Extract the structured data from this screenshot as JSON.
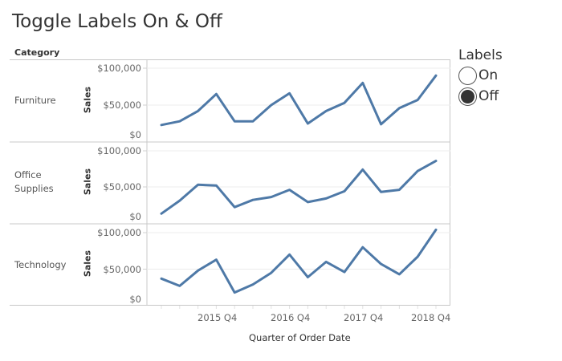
{
  "title": "Toggle Labels On & Off",
  "chart_data": {
    "type": "line",
    "title": "Toggle Labels On & Off",
    "xlabel": "Quarter of Order Date",
    "ylabel": "Sales",
    "row_header": "Category",
    "x": [
      "2015 Q1",
      "2015 Q2",
      "2015 Q3",
      "2015 Q4",
      "2016 Q1",
      "2016 Q2",
      "2016 Q3",
      "2016 Q4",
      "2017 Q1",
      "2017 Q2",
      "2017 Q3",
      "2017 Q4",
      "2018 Q1",
      "2018 Q2",
      "2018 Q3",
      "2018 Q4"
    ],
    "x_tick_labels": [
      "2015 Q4",
      "2016 Q4",
      "2017 Q4",
      "2018 Q4"
    ],
    "y_tick_labels": [
      "$100,000",
      "$50,000",
      "$0"
    ],
    "ylim": [
      0,
      110000
    ],
    "grid": true,
    "line_color": "#4E79A7",
    "series": [
      {
        "name": "Furniture",
        "values": [
          23000,
          28000,
          42000,
          65000,
          28000,
          28000,
          50000,
          66000,
          25000,
          42000,
          53000,
          80000,
          24000,
          46000,
          57000,
          90000
        ]
      },
      {
        "name": "Office Supplies",
        "values": [
          13000,
          31000,
          53000,
          52000,
          22000,
          32000,
          36000,
          46000,
          29000,
          34000,
          44000,
          74000,
          43000,
          46000,
          72000,
          86000
        ]
      },
      {
        "name": "Technology",
        "values": [
          37000,
          27000,
          48000,
          63000,
          18000,
          29000,
          45000,
          70000,
          39000,
          60000,
          46000,
          80000,
          57000,
          43000,
          67000,
          104000
        ]
      }
    ]
  },
  "rows": [
    {
      "label": "Furniture",
      "label_lines": [
        "Furniture"
      ]
    },
    {
      "label": "Office Supplies",
      "label_lines": [
        "Office",
        "Supplies"
      ]
    },
    {
      "label": "Technology",
      "label_lines": [
        "Technology"
      ]
    }
  ],
  "legend": {
    "title": "Labels",
    "options": [
      {
        "label": "On",
        "checked": false
      },
      {
        "label": "Off",
        "checked": true
      }
    ]
  }
}
